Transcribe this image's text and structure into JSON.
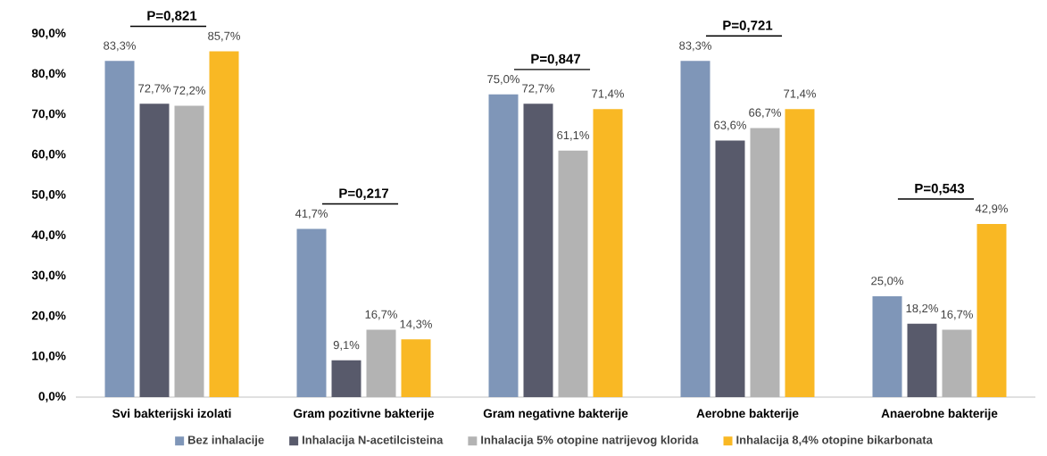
{
  "chart_data": {
    "type": "bar",
    "categories": [
      "Svi bakterijski izolati",
      "Gram pozitivne bakterije",
      "Gram negativne bakterije",
      "Aerobne bakterije",
      "Anaerobne bakterije"
    ],
    "series": [
      {
        "name": "Bez inhalacije",
        "color": "#7f96b8",
        "values": [
          83.3,
          41.7,
          75.0,
          83.3,
          25.0
        ],
        "value_labels": [
          "83,3%",
          "41,7%",
          "75,0%",
          "83,3%",
          "25,0%"
        ]
      },
      {
        "name": "Inhalacija N-acetilcisteina",
        "color": "#585a6b",
        "values": [
          72.7,
          9.1,
          72.7,
          63.6,
          18.2
        ],
        "value_labels": [
          "72,7%",
          "9,1%",
          "72,7%",
          "63,6%",
          "18,2%"
        ]
      },
      {
        "name": "Inhalacija 5% otopine natrijevog klorida",
        "color": "#b3b3b3",
        "values": [
          72.2,
          16.7,
          61.1,
          66.7,
          16.7
        ],
        "value_labels": [
          "72,2%",
          "16,7%",
          "61,1%",
          "66,7%",
          "16,7%"
        ]
      },
      {
        "name": "Inhalacija 8,4% otopine bikarbonata",
        "color": "#f9b824",
        "values": [
          85.7,
          14.3,
          71.4,
          71.4,
          42.9
        ],
        "value_labels": [
          "85,7%",
          "14,3%",
          "71,4%",
          "71,4%",
          "42,9%"
        ]
      }
    ],
    "ylim": [
      0,
      90
    ],
    "yticks": [
      {
        "value": 0,
        "label": "0,0%"
      },
      {
        "value": 10,
        "label": "10,0%"
      },
      {
        "value": 20,
        "label": "20,0%"
      },
      {
        "value": 30,
        "label": "30,0%"
      },
      {
        "value": 40,
        "label": "40,0%"
      },
      {
        "value": 50,
        "label": "50,0%"
      },
      {
        "value": 60,
        "label": "60,0%"
      },
      {
        "value": 70,
        "label": "70,0%"
      },
      {
        "value": 80,
        "label": "80,0%"
      },
      {
        "value": 90,
        "label": "90,0%"
      }
    ],
    "annotations": [
      "P=0,821",
      "P=0,217",
      "P=0,847",
      "P=0,721",
      "P=0,543"
    ],
    "legend": "bottom",
    "grid": false
  }
}
